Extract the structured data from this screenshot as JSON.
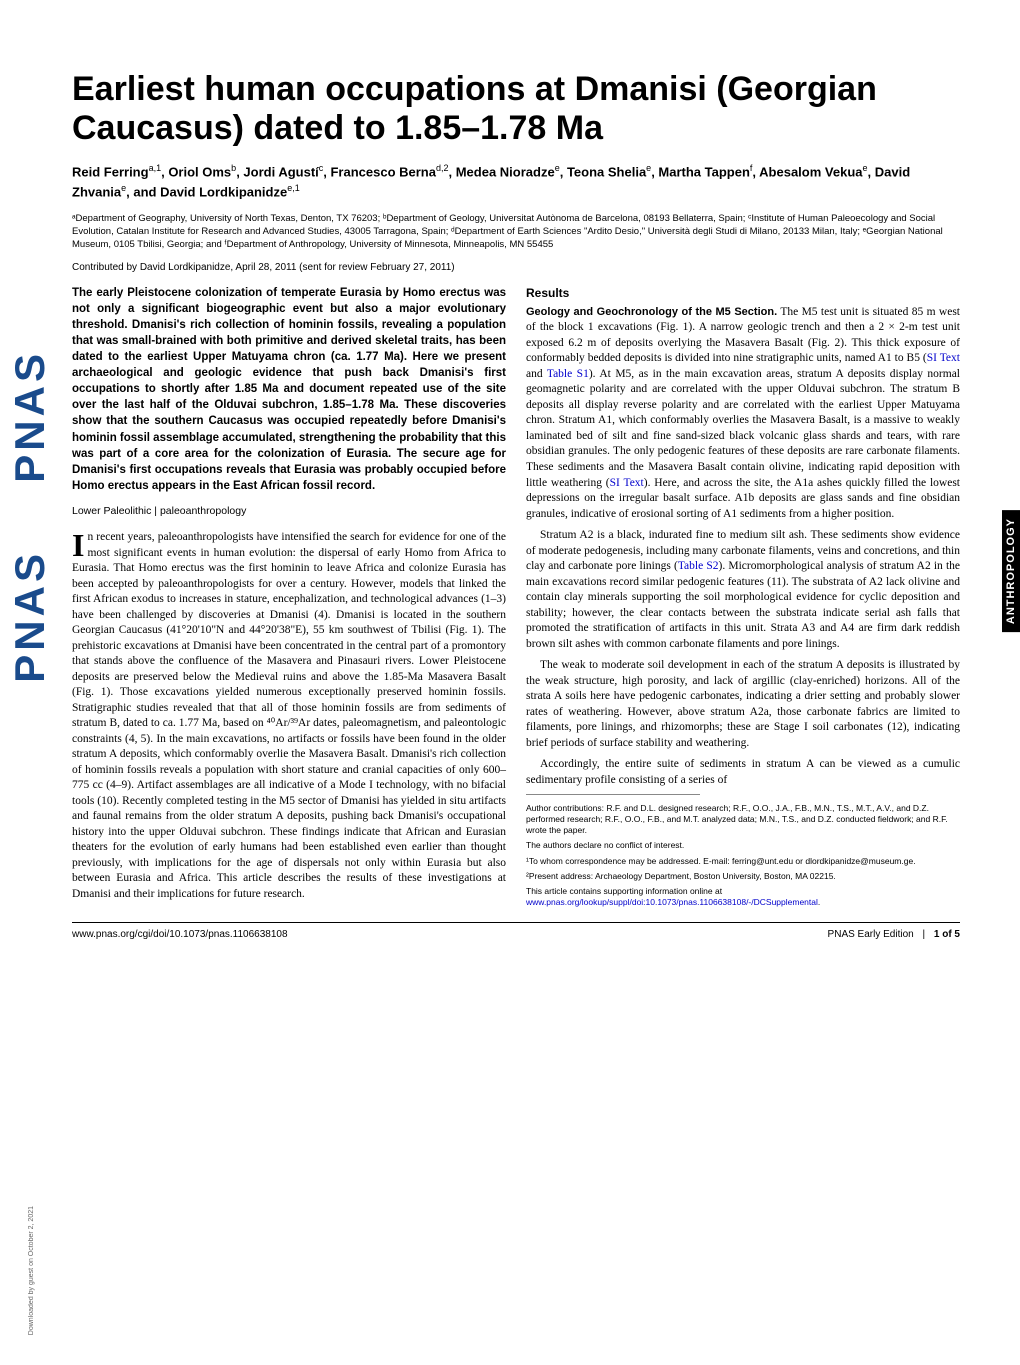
{
  "journal": {
    "logo_text": "PNAS",
    "side_tab": "ANTHROPOLOGY",
    "download_note": "Downloaded by guest on October 2, 2021"
  },
  "header": {
    "title": "Earliest human occupations at Dmanisi (Georgian Caucasus) dated to 1.85–1.78 Ma",
    "authors_html": "Reid Ferring<sup>a,1</sup>, Oriol Oms<sup>b</sup>, Jordi Agustí<sup>c</sup>, Francesco Berna<sup>d,2</sup>, Medea Nioradze<sup>e</sup>, Teona Shelia<sup>e</sup>, Martha Tappen<sup>f</sup>, Abesalom Vekua<sup>e</sup>, David Zhvania<sup>e</sup>, and David Lordkipanidze<sup>e,1</sup>",
    "affiliations": "ᵃDepartment of Geography, University of North Texas, Denton, TX 76203; ᵇDepartment of Geology, Universitat Autònoma de Barcelona, 08193 Bellaterra, Spain; ᶜInstitute of Human Paleoecology and Social Evolution, Catalan Institute for Research and Advanced Studies, 43005 Tarragona, Spain; ᵈDepartment of Earth Sciences \"Ardito Desio,\" Università degli Studi di Milano, 20133 Milan, Italy; ᵉGeorgian National Museum, 0105 Tbilisi, Georgia; and ᶠDepartment of Anthropology, University of Minnesota, Minneapolis, MN 55455",
    "contributed": "Contributed by David Lordkipanidze, April 28, 2011 (sent for review February 27, 2011)"
  },
  "abstract": "The early Pleistocene colonization of temperate Eurasia by Homo erectus was not only a significant biogeographic event but also a major evolutionary threshold. Dmanisi's rich collection of hominin fossils, revealing a population that was small-brained with both primitive and derived skeletal traits, has been dated to the earliest Upper Matuyama chron (ca. 1.77 Ma). Here we present archaeological and geologic evidence that push back Dmanisi's first occupations to shortly after 1.85 Ma and document repeated use of the site over the last half of the Olduvai subchron, 1.85–1.78 Ma. These discoveries show that the southern Caucasus was occupied repeatedly before Dmanisi's hominin fossil assemblage accumulated, strengthening the probability that this was part of a core area for the colonization of Eurasia. The secure age for Dmanisi's first occupations reveals that Eurasia was probably occupied before Homo erectus appears in the East African fossil record.",
  "keywords": "Lower Paleolithic | paleoanthropology",
  "intro": {
    "p1": "In recent years, paleoanthropologists have intensified the search for evidence for one of the most significant events in human evolution: the dispersal of early Homo from Africa to Eurasia. That Homo erectus was the first hominin to leave Africa and colonize Eurasia has been accepted by paleoanthropologists for over a century. However, models that linked the first African exodus to increases in stature, encephalization, and technological advances (1–3) have been challenged by discoveries at Dmanisi (4). Dmanisi is located in the southern Georgian Caucasus (41°20'10\"N and 44°20'38\"E), 55 km southwest of Tbilisi (Fig. 1). The prehistoric excavations at Dmanisi have been concentrated in the central part of a promontory that stands above the confluence of the Masavera and Pinasauri rivers. Lower Pleistocene deposits are preserved below the Medieval ruins and above the 1.85-Ma Masavera Basalt (Fig. 1). Those excavations yielded numerous exceptionally preserved hominin fossils. Stratigraphic studies revealed that that all of those hominin fossils are from sediments of stratum B, dated to ca. 1.77 Ma, based on ⁴⁰Ar/³⁹Ar dates, paleomagnetism, and paleontologic constraints (4, 5). In the main excavations, no artifacts or fossils have been found in the older stratum A deposits, which conformably overlie the Masavera Basalt. Dmanisi's rich collection of hominin fossils reveals a population with short stature and cranial capacities of only 600–775 cc (4–9). Artifact assemblages are all indicative of a Mode I technology, with no bifacial tools (10). Recently completed testing in the M5 sector of Dmanisi has yielded in situ artifacts and faunal remains from the older stratum A deposits, pushing back Dmanisi's occupational history into the upper Olduvai subchron. These findings indicate that African and Eurasian theaters for the evolution of early humans had been established even earlier than thought previously, with implications for the age of dispersals not only within Eurasia but also between Eurasia and Africa. This article describes the results of these investigations at Dmanisi and their implications for future research."
  },
  "results": {
    "heading": "Results",
    "sub1_head": "Geology and Geochronology of the M5 Section.",
    "sub1_p1": "The M5 test unit is situated 85 m west of the block 1 excavations (Fig. 1). A narrow geologic trench and then a 2 × 2-m test unit exposed 6.2 m of deposits overlying the Masavera Basalt (Fig. 2). This thick exposure of conformably bedded deposits is divided into nine stratigraphic units, named A1 to B5 (",
    "sub1_link1": "SI Text",
    "sub1_p1b": " and ",
    "sub1_link2": "Table S1",
    "sub1_p1c": "). At M5, as in the main excavation areas, stratum A deposits display normal geomagnetic polarity and are correlated with the upper Olduvai subchron. The stratum B deposits all display reverse polarity and are correlated with the earliest Upper Matuyama chron. Stratum A1, which conformably overlies the Masavera Basalt, is a massive to weakly laminated bed of silt and fine sand-sized black volcanic glass shards and tears, with rare obsidian granules. The only pedogenic features of these deposits are rare carbonate filaments. These sediments and the Masavera Basalt contain olivine, indicating rapid deposition with little weathering (",
    "sub1_link3": "SI Text",
    "sub1_p1d": "). Here, and across the site, the A1a ashes quickly filled the lowest depressions on the irregular basalt surface. A1b deposits are glass sands and fine obsidian granules, indicative of erosional sorting of A1 sediments from a higher position.",
    "sub1_p2": "Stratum A2 is a black, indurated fine to medium silt ash. These sediments show evidence of moderate pedogenesis, including many carbonate filaments, veins and concretions, and thin clay and carbonate pore linings (",
    "sub1_link4": "Table S2",
    "sub1_p2b": "). Micromorphological analysis of stratum A2 in the main excavations record similar pedogenic features (11). The substrata of A2 lack olivine and contain clay minerals supporting the soil morphological evidence for cyclic deposition and stability; however, the clear contacts between the substrata indicate serial ash falls that promoted the stratification of artifacts in this unit. Strata A3 and A4 are firm dark reddish brown silt ashes with common carbonate filaments and pore linings.",
    "sub1_p3": "The weak to moderate soil development in each of the stratum A deposits is illustrated by the weak structure, high porosity, and lack of argillic (clay-enriched) horizons. All of the strata A soils here have pedogenic carbonates, indicating a drier setting and probably slower rates of weathering. However, above stratum A2a, those carbonate fabrics are limited to filaments, pore linings, and rhizomorphs; these are Stage I soil carbonates (12), indicating brief periods of surface stability and weathering.",
    "sub1_p4": "Accordingly, the entire suite of sediments in stratum A can be viewed as a cumulic sedimentary profile consisting of a series of"
  },
  "footnotes": {
    "contributions": "Author contributions: R.F. and D.L. designed research; R.F., O.O., J.A., F.B., M.N., T.S., M.T., A.V., and D.Z. performed research; R.F., O.O., F.B., and M.T. analyzed data; M.N., T.S., and D.Z. conducted fieldwork; and R.F. wrote the paper.",
    "conflict": "The authors declare no conflict of interest.",
    "correspond": "¹To whom correspondence may be addressed. E-mail: ferring@unt.edu or dlordkipanidze@museum.ge.",
    "present": "²Present address: Archaeology Department, Boston University, Boston, MA 02215.",
    "supp_a": "This article contains supporting information online at ",
    "supp_link": "www.pnas.org/lookup/suppl/doi:10.1073/pnas.1106638108/-/DCSupplemental",
    "supp_b": "."
  },
  "footer": {
    "doi": "www.pnas.org/cgi/doi/10.1073/pnas.1106638108",
    "right_a": "PNAS Early Edition",
    "right_b": "1 of 5"
  }
}
